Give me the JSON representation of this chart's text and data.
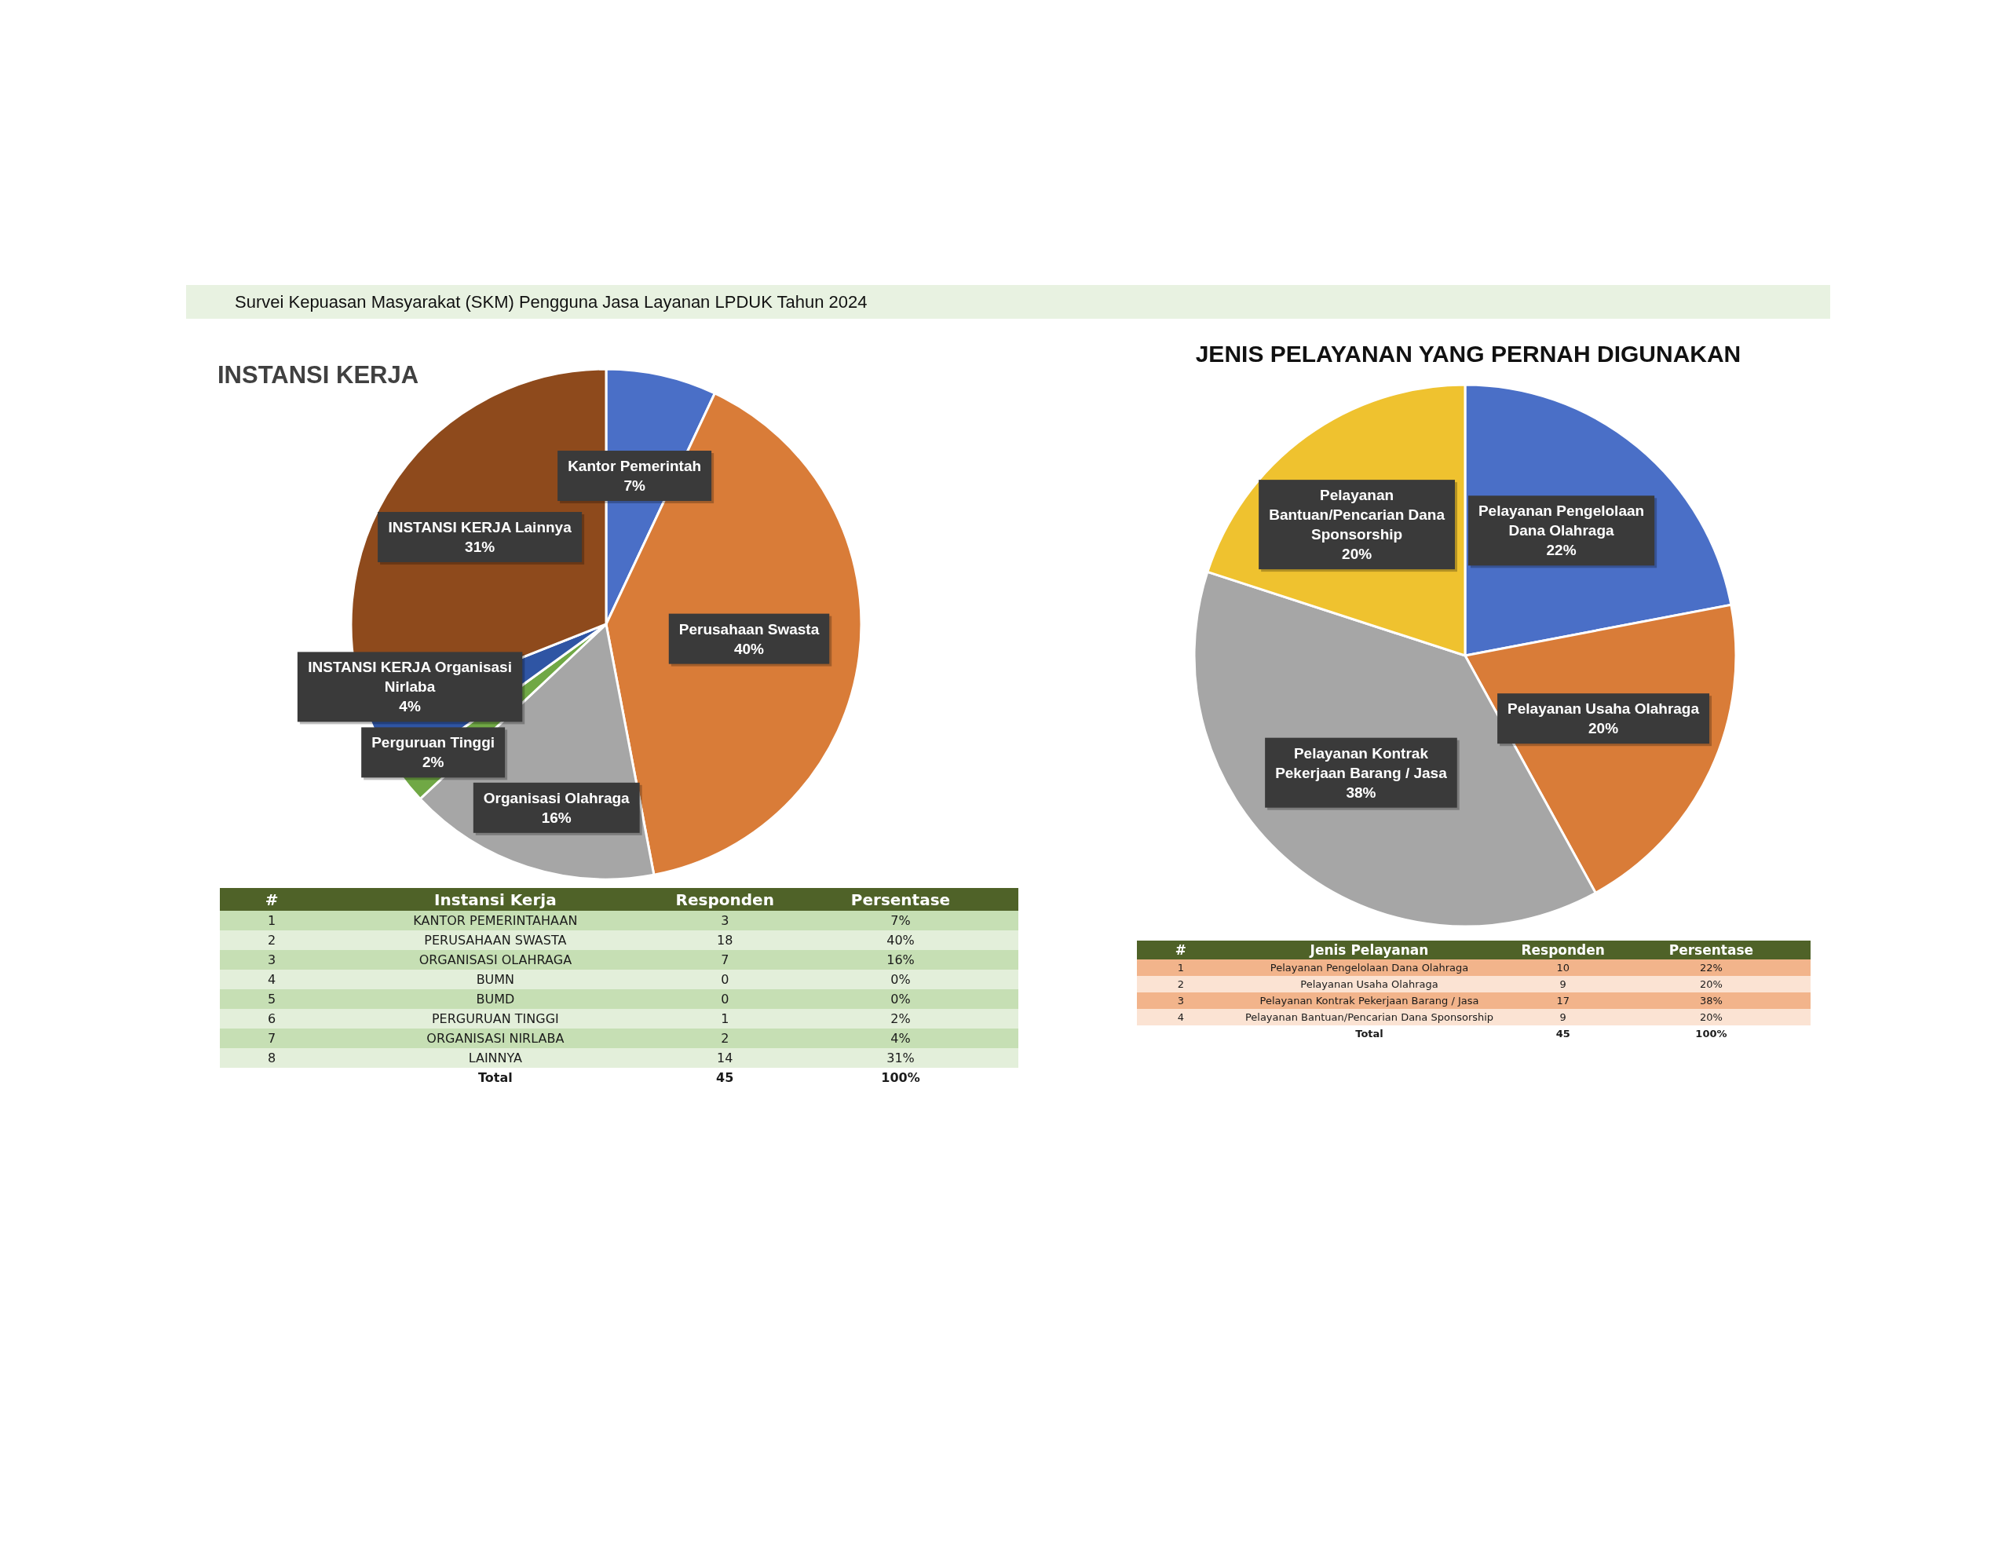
{
  "chart_data": [
    {
      "type": "other",
      "title": "Survei Kepuasan Masyarakat (SKM) Pengguna Jasa Layanan LPDUK Tahun 2024"
    },
    {
      "type": "pie",
      "title": "INSTANSI KERJA",
      "categories": [
        "Kantor Pemerintah",
        "Perusahaan Swasta",
        "Organisasi Olahraga",
        "Perguruan Tinggi",
        "INSTANSI KERJA Organisasi Nirlaba",
        "INSTANSI KERJA Lainnya"
      ],
      "values": [
        7,
        40,
        16,
        2,
        4,
        31
      ],
      "value_labels": [
        "7%",
        "40%",
        "16%",
        "2%",
        "4%",
        "31%"
      ],
      "colors": [
        "#4a6fc7",
        "#d97c38",
        "#a6a6a6",
        "#70a845",
        "#2f55a4",
        "#8e4a1c"
      ]
    },
    {
      "type": "other",
      "xlabel": "Instansi Kerja",
      "categories": [
        "KANTOR PEMERINTAHAAN",
        "PERUSAHAAN SWASTA",
        "ORGANISASI OLAHRAGA",
        "BUMN",
        "BUMD",
        "PERGURUAN TINGGI",
        "ORGANISASI NIRLABA",
        "LAINNYA"
      ],
      "series": [
        {
          "name": "#",
          "values": [
            1,
            2,
            3,
            4,
            5,
            6,
            7,
            8
          ],
          "colors": [
            "#c6dfb4",
            "#e3efda",
            "#c6dfb4",
            "#e3efda",
            "#c6dfb4",
            "#e3efda",
            "#c6dfb4",
            "#e3efda"
          ]
        },
        {
          "name": "Responden",
          "values": [
            3,
            18,
            7,
            0,
            0,
            1,
            2,
            14
          ],
          "colors": [
            "#c6dfb4",
            "#e3efda",
            "#c6dfb4",
            "#e3efda",
            "#c6dfb4",
            "#e3efda",
            "#c6dfb4",
            "#e3efda"
          ]
        },
        {
          "name": "Persentase",
          "values": [
            7,
            40,
            16,
            0,
            0,
            2,
            4,
            31
          ],
          "value_labels": [
            "7%",
            "40%",
            "16%",
            "0%",
            "0%",
            "2%",
            "4%",
            "31%"
          ],
          "colors": [
            "#c6dfb4",
            "#e3efda",
            "#c6dfb4",
            "#e3efda",
            "#c6dfb4",
            "#e3efda",
            "#c6dfb4",
            "#e3efda"
          ]
        }
      ],
      "data_labels": true,
      "colors": [
        "#c6dfb4",
        "#e3efda",
        "#c6dfb4",
        "#e3efda",
        "#c6dfb4",
        "#e3efda",
        "#c6dfb4",
        "#e3efda"
      ],
      "annotations": [
        "Total"
      ],
      "totals": [
        "45",
        "100%"
      ]
    },
    {
      "type": "pie",
      "title": "JENIS PELAYANAN YANG PERNAH DIGUNAKAN",
      "categories": [
        "Pelayanan Pengelolaan Dana Olahraga",
        "Pelayanan Usaha Olahraga",
        "Pelayanan Kontrak Pekerjaan Barang / Jasa",
        "Pelayanan Bantuan/Pencarian Dana Sponsorship"
      ],
      "values": [
        22,
        20,
        38,
        20
      ],
      "value_labels": [
        "22%",
        "20%",
        "38%",
        "20%"
      ],
      "colors": [
        "#4a6fc7",
        "#d97c38",
        "#a6a6a6",
        "#efc22f"
      ]
    },
    {
      "type": "other",
      "xlabel": "Jenis Pelayanan",
      "categories": [
        "Pelayanan Pengelolaan Dana Olahraga",
        "Pelayanan Usaha Olahraga",
        "Pelayanan Kontrak Pekerjaan Barang / Jasa",
        "Pelayanan Bantuan/Pencarian Dana Sponsorship"
      ],
      "series": [
        {
          "name": "#",
          "values": [
            1,
            2,
            3,
            4
          ],
          "colors": [
            "#f2b48b",
            "#fbe3d3",
            "#f2b48b",
            "#fbe3d3"
          ]
        },
        {
          "name": "Responden",
          "values": [
            10,
            9,
            17,
            9
          ],
          "colors": [
            "#f2b48b",
            "#fbe3d3",
            "#f2b48b",
            "#fbe3d3"
          ]
        },
        {
          "name": "Persentase",
          "values": [
            22,
            20,
            38,
            20
          ],
          "value_labels": [
            "22%",
            "20%",
            "38%",
            "20%"
          ],
          "colors": [
            "#f2b48b",
            "#fbe3d3",
            "#f2b48b",
            "#fbe3d3"
          ]
        }
      ],
      "data_labels": true,
      "colors": [
        "#f2b48b",
        "#fbe3d3",
        "#f2b48b",
        "#fbe3d3"
      ],
      "annotations": [
        "Total"
      ],
      "totals": [
        "45",
        "100%"
      ]
    }
  ]
}
